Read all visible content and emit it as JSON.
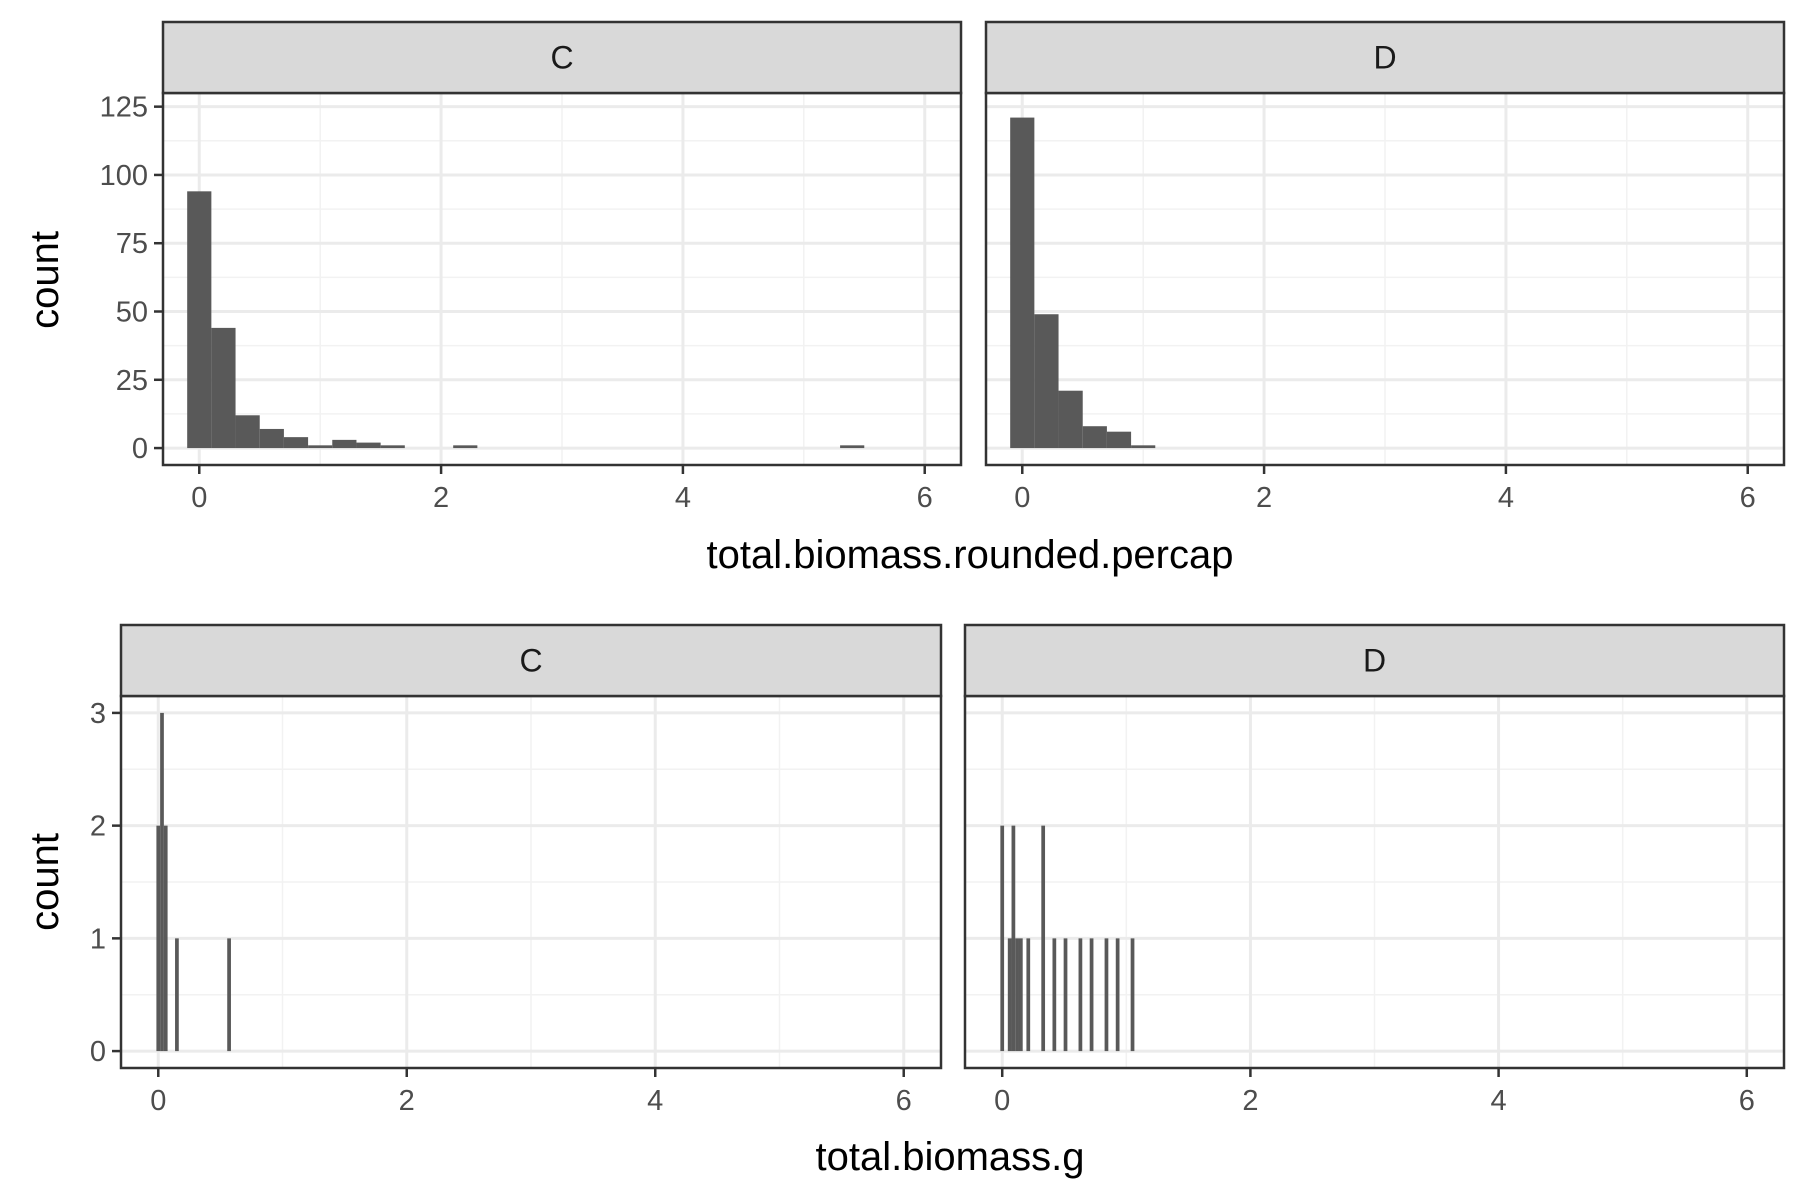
{
  "colors": {
    "bar": "#595959",
    "strip_fill": "#d9d9d9",
    "strip_border": "#333333",
    "panel_border": "#333333",
    "grid_major": "#ebebeb",
    "grid_minor": "#f2f2f2",
    "tick": "#333333",
    "tick_label": "#4d4d4d",
    "title": "#000000"
  },
  "chart_data": [
    {
      "type": "bar",
      "subtype": "faceted-histogram",
      "xlabel": "total.biomass.rounded.percap",
      "ylabel": "count",
      "xlim": [
        -0.3,
        6.3
      ],
      "ylim": [
        -6.2,
        130
      ],
      "x_ticks": [
        0,
        2,
        4,
        6
      ],
      "y_ticks": [
        0,
        25,
        50,
        75,
        100,
        125
      ],
      "y_tick_labels": [
        "0",
        "25",
        "50",
        "75",
        "100",
        "125"
      ],
      "bin_width": 0.2,
      "grid": true,
      "facets": [
        {
          "label": "C",
          "bins": [
            {
              "x": 0.0,
              "count": 94
            },
            {
              "x": 0.2,
              "count": 44
            },
            {
              "x": 0.4,
              "count": 12
            },
            {
              "x": 0.6,
              "count": 7
            },
            {
              "x": 0.8,
              "count": 4
            },
            {
              "x": 1.0,
              "count": 1
            },
            {
              "x": 1.2,
              "count": 3
            },
            {
              "x": 1.4,
              "count": 2
            },
            {
              "x": 1.6,
              "count": 1
            },
            {
              "x": 2.2,
              "count": 1
            },
            {
              "x": 5.4,
              "count": 1
            }
          ]
        },
        {
          "label": "D",
          "bins": [
            {
              "x": 0.0,
              "count": 121
            },
            {
              "x": 0.2,
              "count": 49
            },
            {
              "x": 0.4,
              "count": 21
            },
            {
              "x": 0.6,
              "count": 8
            },
            {
              "x": 0.8,
              "count": 6
            },
            {
              "x": 1.0,
              "count": 1
            }
          ]
        }
      ]
    },
    {
      "type": "bar",
      "subtype": "faceted-histogram",
      "xlabel": "total.biomass.g",
      "ylabel": "count",
      "xlim": [
        -0.3,
        6.3
      ],
      "ylim": [
        -0.15,
        3.15
      ],
      "x_ticks": [
        0,
        2,
        4,
        6
      ],
      "y_ticks": [
        0,
        1,
        2,
        3
      ],
      "y_tick_labels": [
        "0",
        "1",
        "2",
        "3"
      ],
      "bin_width": 0.03,
      "grid": true,
      "facets": [
        {
          "label": "C",
          "bins": [
            {
              "x": 0.0,
              "count": 2
            },
            {
              "x": 0.03,
              "count": 3
            },
            {
              "x": 0.06,
              "count": 2
            },
            {
              "x": 0.15,
              "count": 1
            },
            {
              "x": 0.57,
              "count": 1
            }
          ]
        },
        {
          "label": "D",
          "bins": [
            {
              "x": 0.0,
              "count": 2
            },
            {
              "x": 0.06,
              "count": 1
            },
            {
              "x": 0.09,
              "count": 2
            },
            {
              "x": 0.12,
              "count": 1
            },
            {
              "x": 0.15,
              "count": 1
            },
            {
              "x": 0.21,
              "count": 1
            },
            {
              "x": 0.33,
              "count": 2
            },
            {
              "x": 0.42,
              "count": 1
            },
            {
              "x": 0.51,
              "count": 1
            },
            {
              "x": 0.63,
              "count": 1
            },
            {
              "x": 0.72,
              "count": 1
            },
            {
              "x": 0.84,
              "count": 1
            },
            {
              "x": 0.93,
              "count": 1
            },
            {
              "x": 1.05,
              "count": 1
            }
          ]
        }
      ]
    }
  ]
}
